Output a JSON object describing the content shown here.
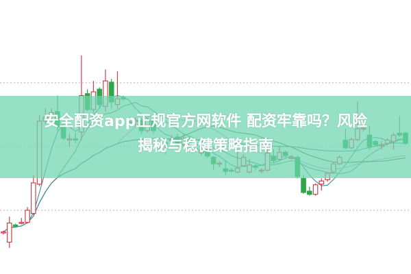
{
  "title": {
    "line1": "安全配资app正规官方网软件 配资牢靠吗？风险",
    "line2": "揭秘与稳健策略指南"
  },
  "colors": {
    "up": "#d0404a",
    "down": "#2aa84a",
    "grid": "#d9a0a8",
    "banner": "#6ed6b0"
  },
  "chart_data": {
    "type": "candlestick",
    "title": "",
    "xlabel": "",
    "ylabel": "",
    "ylim": [
      0,
      43
    ],
    "grid": true,
    "grid_levels": [
      10,
      20,
      30
    ],
    "candles": [
      [
        6.5,
        6.6,
        6.8,
        6.2
      ],
      [
        5.0,
        8.0,
        9.0,
        4.1
      ],
      [
        7.7,
        7.5,
        7.9,
        7.3
      ],
      [
        8.0,
        8.1,
        8.8,
        7.8
      ],
      [
        8.1,
        10.0,
        10.5,
        7.9
      ],
      [
        9.5,
        14.3,
        15.5,
        9.3
      ],
      [
        14.1,
        24.0,
        25.0,
        13.8
      ],
      [
        24.0,
        24.6,
        26.0,
        23.5
      ],
      [
        25.0,
        25.3,
        26.0,
        24.2
      ],
      [
        25.5,
        23.1,
        28.0,
        22.5
      ],
      [
        23.0,
        21.3,
        23.3,
        21.0
      ],
      [
        21.1,
        21.2,
        22.0,
        20.0
      ],
      [
        21.2,
        21.1,
        22.2,
        20.5
      ],
      [
        22.3,
        28.0,
        34.3,
        21.0
      ],
      [
        28.3,
        25.8,
        29.0,
        25.5
      ],
      [
        25.8,
        28.6,
        30.3,
        25.3
      ],
      [
        29.0,
        26.6,
        29.3,
        26.0
      ],
      [
        26.3,
        30.3,
        32.1,
        25.5
      ],
      [
        30.1,
        27.0,
        30.6,
        26.0
      ],
      [
        26.6,
        27.5,
        31.8,
        26.0
      ],
      [
        27.7,
        27.5,
        28.0,
        27.2
      ],
      [
        23.8,
        23.9,
        24.5,
        23.2
      ],
      [
        24.0,
        24.1,
        24.6,
        23.3
      ],
      [
        24.1,
        22.5,
        24.5,
        22.0
      ],
      [
        22.5,
        24.1,
        24.4,
        22.2
      ],
      [
        24.0,
        22.5,
        24.3,
        22.0
      ],
      [
        20.0,
        19.9,
        20.4,
        19.5
      ],
      [
        20.6,
        20.5,
        21.0,
        18.8
      ],
      [
        21.0,
        21.1,
        21.5,
        20.5
      ],
      [
        21.5,
        20.3,
        22.0,
        20.0
      ],
      [
        20.3,
        21.3,
        22.0,
        20.0
      ],
      [
        21.2,
        19.8,
        21.6,
        19.5
      ],
      [
        19.7,
        19.6,
        20.0,
        19.2
      ],
      [
        19.0,
        19.5,
        20.0,
        18.6
      ],
      [
        19.6,
        18.5,
        20.0,
        18.2
      ],
      [
        18.3,
        17.3,
        18.5,
        16.3
      ],
      [
        17.3,
        17.4,
        17.7,
        16.8
      ],
      [
        16.5,
        16.1,
        17.9,
        15.5
      ],
      [
        16.3,
        16.2,
        16.6,
        15.9
      ],
      [
        16.0,
        16.6,
        19.6,
        15.8
      ],
      [
        17.0,
        18.3,
        18.8,
        16.8
      ],
      [
        16.0,
        17.1,
        18.0,
        15.8
      ],
      [
        16.9,
        16.8,
        17.2,
        16.2
      ],
      [
        16.3,
        16.3,
        16.6,
        15.8
      ],
      [
        16.3,
        19.0,
        19.8,
        16.0
      ],
      [
        18.5,
        17.8,
        19.6,
        17.5
      ],
      [
        18.0,
        19.1,
        20.1,
        17.7
      ],
      [
        19.1,
        18.6,
        19.4,
        18.4
      ],
      [
        18.3,
        18.3,
        18.6,
        18.0
      ],
      [
        18.3,
        15.3,
        18.6,
        15.0
      ],
      [
        15.0,
        12.8,
        15.5,
        12.6
      ],
      [
        13.0,
        12.5,
        13.7,
        12.3
      ],
      [
        12.5,
        14.0,
        14.2,
        12.3
      ],
      [
        14.1,
        14.6,
        15.0,
        13.1
      ],
      [
        14.8,
        15.8,
        16.1,
        14.5
      ],
      [
        16.0,
        17.3,
        17.6,
        15.8
      ],
      [
        17.3,
        18.3,
        18.6,
        17.1
      ],
      [
        21.0,
        19.8,
        22.8,
        19.6
      ],
      [
        19.8,
        21.1,
        21.4,
        19.6
      ],
      [
        21.1,
        22.8,
        27.1,
        20.8
      ],
      [
        22.8,
        22.9,
        23.6,
        22.4
      ],
      [
        21.8,
        20.0,
        23.3,
        19.5
      ],
      [
        20.8,
        20.3,
        21.0,
        20.0
      ],
      [
        20.3,
        20.3,
        20.8,
        19.5
      ],
      [
        20.5,
        21.0,
        21.3,
        20.2
      ],
      [
        20.8,
        21.8,
        22.2,
        19.5
      ],
      [
        22.1,
        21.8,
        24.8,
        21.5
      ],
      [
        22.1,
        20.5,
        22.5,
        20.2
      ]
    ],
    "candle_fields": [
      "open",
      "close",
      "high",
      "low"
    ],
    "moving_averages": [
      {
        "period": 5,
        "color": "#3a8fa8"
      },
      {
        "period": 10,
        "color": "#4a9a6a"
      },
      {
        "period": 20,
        "color": "#e08ad8"
      },
      {
        "period": 30,
        "color": "#4b7a3a"
      },
      {
        "period": 60,
        "color": "#3f8fa0"
      }
    ]
  }
}
